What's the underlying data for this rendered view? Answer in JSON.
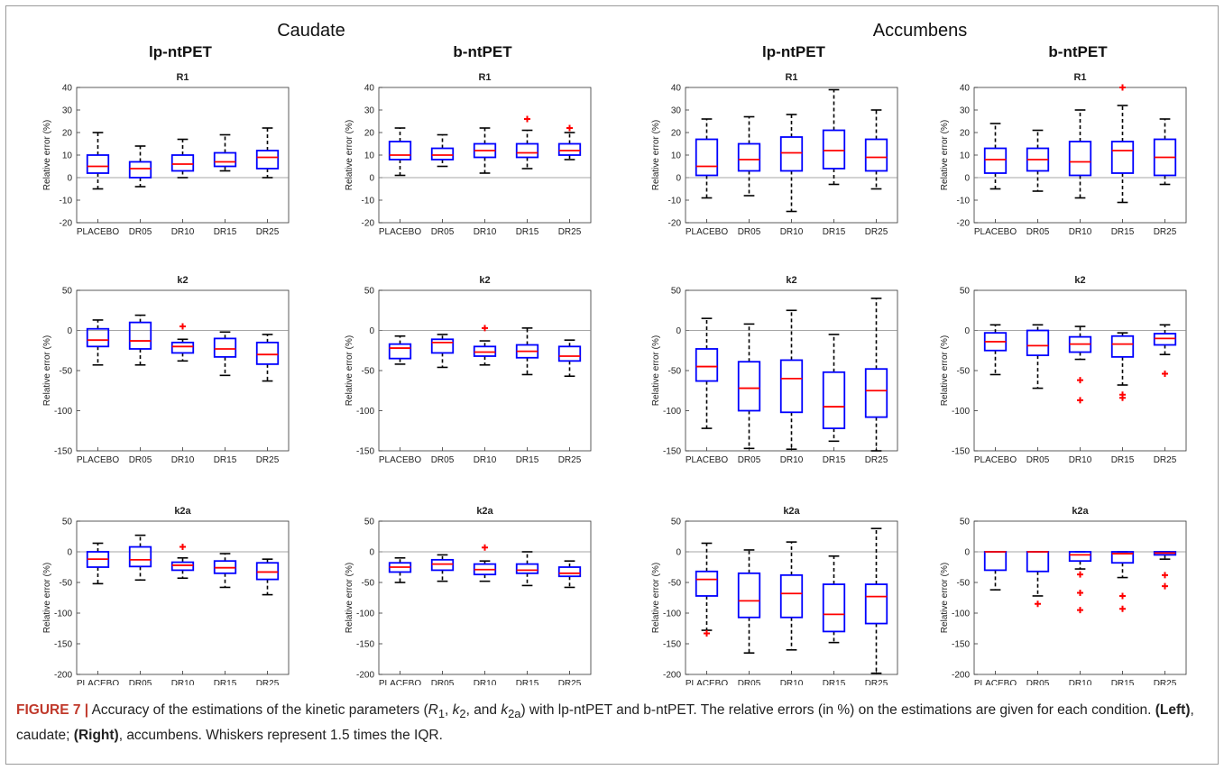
{
  "colors": {
    "box": "#0000ff",
    "median": "#ff0000",
    "outlier": "#ff0000",
    "whisker": "#000000",
    "zero_line": "#888888"
  },
  "regions": [
    {
      "title": "Caudate",
      "methods": [
        "lp-ntPET",
        "b-ntPET"
      ]
    },
    {
      "title": "Accumbens",
      "methods": [
        "lp-ntPET",
        "b-ntPET"
      ]
    }
  ],
  "caption": {
    "label": "FIGURE 7 |",
    "text_1": " Accuracy of the estimations of the kinetic parameters (",
    "p1": "R",
    "s1": "1",
    "sep1": ", ",
    "p2": "k",
    "s2": "2",
    "sep2": ", and ",
    "p3": "k",
    "s3": "2a",
    "text_2": ") with lp-ntPET and b-ntPET. The relative errors (in %) on the estimations are given for each condition. ",
    "left": "(Left)",
    "text_3": ", caudate; ",
    "right": "(Right)",
    "text_4": ", accumbens. Whiskers represent 1.5 times the IQR."
  },
  "chart_data": [
    {
      "type": "box",
      "region": "Caudate",
      "method": "lp-ntPET",
      "title": "R1",
      "ylabel": "Relative error (%)",
      "ylim": [
        -20,
        40
      ],
      "yticks": [
        -20,
        -10,
        0,
        10,
        20,
        30,
        40
      ],
      "categories": [
        "PLACEBO",
        "DR05",
        "DR10",
        "DR15",
        "DR25"
      ],
      "boxes": [
        {
          "q1": 2,
          "median": 5,
          "q3": 10,
          "lo": -5,
          "hi": 20,
          "outliers": []
        },
        {
          "q1": 0,
          "median": 4,
          "q3": 7,
          "lo": -4,
          "hi": 14,
          "outliers": []
        },
        {
          "q1": 3,
          "median": 6,
          "q3": 10,
          "lo": 0,
          "hi": 17,
          "outliers": []
        },
        {
          "q1": 5,
          "median": 7,
          "q3": 11,
          "lo": 3,
          "hi": 19,
          "outliers": []
        },
        {
          "q1": 4,
          "median": 9,
          "q3": 12,
          "lo": 0,
          "hi": 22,
          "outliers": []
        }
      ]
    },
    {
      "type": "box",
      "region": "Caudate",
      "method": "b-ntPET",
      "title": "R1",
      "ylabel": "Relative error (%)",
      "ylim": [
        -20,
        40
      ],
      "yticks": [
        -20,
        -10,
        0,
        10,
        20,
        30,
        40
      ],
      "categories": [
        "PLACEBO",
        "DR05",
        "DR10",
        "DR15",
        "DR25"
      ],
      "boxes": [
        {
          "q1": 8,
          "median": 10,
          "q3": 16,
          "lo": 1,
          "hi": 22,
          "outliers": []
        },
        {
          "q1": 8,
          "median": 10,
          "q3": 13,
          "lo": 5,
          "hi": 19,
          "outliers": []
        },
        {
          "q1": 9,
          "median": 12,
          "q3": 15,
          "lo": 2,
          "hi": 22,
          "outliers": []
        },
        {
          "q1": 9,
          "median": 11,
          "q3": 15,
          "lo": 4,
          "hi": 21,
          "outliers": [
            26
          ]
        },
        {
          "q1": 10,
          "median": 12,
          "q3": 15,
          "lo": 8,
          "hi": 20,
          "outliers": [
            22
          ]
        }
      ]
    },
    {
      "type": "box",
      "region": "Accumbens",
      "method": "lp-ntPET",
      "title": "R1",
      "ylabel": "Relative error (%)",
      "ylim": [
        -20,
        40
      ],
      "yticks": [
        -20,
        -10,
        0,
        10,
        20,
        30,
        40
      ],
      "categories": [
        "PLACEBO",
        "DR05",
        "DR10",
        "DR15",
        "DR25"
      ],
      "boxes": [
        {
          "q1": 1,
          "median": 5,
          "q3": 17,
          "lo": -9,
          "hi": 26,
          "outliers": []
        },
        {
          "q1": 3,
          "median": 8,
          "q3": 15,
          "lo": -8,
          "hi": 27,
          "outliers": []
        },
        {
          "q1": 3,
          "median": 11,
          "q3": 18,
          "lo": -15,
          "hi": 28,
          "outliers": []
        },
        {
          "q1": 4,
          "median": 12,
          "q3": 21,
          "lo": -3,
          "hi": 39,
          "outliers": []
        },
        {
          "q1": 3,
          "median": 9,
          "q3": 17,
          "lo": -5,
          "hi": 30,
          "outliers": []
        }
      ]
    },
    {
      "type": "box",
      "region": "Accumbens",
      "method": "b-ntPET",
      "title": "R1",
      "ylabel": "Relative error (%)",
      "ylim": [
        -20,
        40
      ],
      "yticks": [
        -20,
        -10,
        0,
        10,
        20,
        30,
        40
      ],
      "categories": [
        "PLACEBO",
        "DR05",
        "DR10",
        "DR15",
        "DR25"
      ],
      "boxes": [
        {
          "q1": 2,
          "median": 8,
          "q3": 13,
          "lo": -5,
          "hi": 24,
          "outliers": []
        },
        {
          "q1": 3,
          "median": 8,
          "q3": 13,
          "lo": -6,
          "hi": 21,
          "outliers": []
        },
        {
          "q1": 1,
          "median": 7,
          "q3": 16,
          "lo": -9,
          "hi": 30,
          "outliers": []
        },
        {
          "q1": 2,
          "median": 12,
          "q3": 16,
          "lo": -11,
          "hi": 32,
          "outliers": [
            40
          ]
        },
        {
          "q1": 1,
          "median": 9,
          "q3": 17,
          "lo": -3,
          "hi": 26,
          "outliers": []
        }
      ]
    },
    {
      "type": "box",
      "region": "Caudate",
      "method": "lp-ntPET",
      "title": "k2",
      "ylabel": "Relative error (%)",
      "ylim": [
        -150,
        50
      ],
      "yticks": [
        -150,
        -100,
        -50,
        0,
        50
      ],
      "categories": [
        "PLACEBO",
        "DR05",
        "DR10",
        "DR15",
        "DR25"
      ],
      "boxes": [
        {
          "q1": -20,
          "median": -12,
          "q3": 2,
          "lo": -43,
          "hi": 13,
          "outliers": []
        },
        {
          "q1": -23,
          "median": -13,
          "q3": 10,
          "lo": -43,
          "hi": 19,
          "outliers": []
        },
        {
          "q1": -28,
          "median": -20,
          "q3": -15,
          "lo": -38,
          "hi": -11,
          "outliers": [
            5
          ]
        },
        {
          "q1": -33,
          "median": -23,
          "q3": -10,
          "lo": -56,
          "hi": -2,
          "outliers": []
        },
        {
          "q1": -42,
          "median": -30,
          "q3": -15,
          "lo": -63,
          "hi": -5,
          "outliers": []
        }
      ]
    },
    {
      "type": "box",
      "region": "Caudate",
      "method": "b-ntPET",
      "title": "k2",
      "ylabel": "Relative error (%)",
      "ylim": [
        -150,
        50
      ],
      "yticks": [
        -150,
        -100,
        -50,
        0,
        50
      ],
      "categories": [
        "PLACEBO",
        "DR05",
        "DR10",
        "DR15",
        "DR25"
      ],
      "boxes": [
        {
          "q1": -35,
          "median": -22,
          "q3": -17,
          "lo": -42,
          "hi": -7,
          "outliers": []
        },
        {
          "q1": -28,
          "median": -15,
          "q3": -11,
          "lo": -46,
          "hi": -5,
          "outliers": []
        },
        {
          "q1": -32,
          "median": -27,
          "q3": -20,
          "lo": -43,
          "hi": -13,
          "outliers": [
            3
          ]
        },
        {
          "q1": -34,
          "median": -26,
          "q3": -18,
          "lo": -55,
          "hi": 3,
          "outliers": []
        },
        {
          "q1": -38,
          "median": -32,
          "q3": -20,
          "lo": -57,
          "hi": -12,
          "outliers": []
        }
      ]
    },
    {
      "type": "box",
      "region": "Accumbens",
      "method": "lp-ntPET",
      "title": "k2",
      "ylabel": "Relative error (%)",
      "ylim": [
        -150,
        50
      ],
      "yticks": [
        -150,
        -100,
        -50,
        0,
        50
      ],
      "categories": [
        "PLACEBO",
        "DR05",
        "DR10",
        "DR15",
        "DR25"
      ],
      "boxes": [
        {
          "q1": -63,
          "median": -45,
          "q3": -23,
          "lo": -122,
          "hi": 15,
          "outliers": []
        },
        {
          "q1": -100,
          "median": -72,
          "q3": -39,
          "lo": -147,
          "hi": 8,
          "outliers": []
        },
        {
          "q1": -102,
          "median": -60,
          "q3": -37,
          "lo": -148,
          "hi": 25,
          "outliers": []
        },
        {
          "q1": -122,
          "median": -95,
          "q3": -52,
          "lo": -138,
          "hi": -5,
          "outliers": []
        },
        {
          "q1": -108,
          "median": -75,
          "q3": -48,
          "lo": -150,
          "hi": 40,
          "outliers": []
        }
      ]
    },
    {
      "type": "box",
      "region": "Accumbens",
      "method": "b-ntPET",
      "title": "k2",
      "ylabel": "Relative error (%)",
      "ylim": [
        -150,
        50
      ],
      "yticks": [
        -150,
        -100,
        -50,
        0,
        50
      ],
      "categories": [
        "PLACEBO",
        "DR05",
        "DR10",
        "DR15",
        "DR25"
      ],
      "boxes": [
        {
          "q1": -25,
          "median": -14,
          "q3": -3,
          "lo": -55,
          "hi": 7,
          "outliers": []
        },
        {
          "q1": -31,
          "median": -19,
          "q3": 0,
          "lo": -72,
          "hi": 7,
          "outliers": []
        },
        {
          "q1": -27,
          "median": -17,
          "q3": -8,
          "lo": -36,
          "hi": 5,
          "outliers": [
            -62,
            -87
          ]
        },
        {
          "q1": -33,
          "median": -17,
          "q3": -7,
          "lo": -68,
          "hi": -3,
          "outliers": [
            -80,
            -84
          ]
        },
        {
          "q1": -18,
          "median": -10,
          "q3": -4,
          "lo": -30,
          "hi": 7,
          "outliers": [
            -54
          ]
        }
      ]
    },
    {
      "type": "box",
      "region": "Caudate",
      "method": "lp-ntPET",
      "title": "k2a",
      "ylabel": "Relative error (%)",
      "ylim": [
        -200,
        50
      ],
      "yticks": [
        -200,
        -150,
        -100,
        -50,
        0,
        50
      ],
      "categories": [
        "PLACEBO",
        "DR05",
        "DR10",
        "DR15",
        "DR25"
      ],
      "boxes": [
        {
          "q1": -25,
          "median": -12,
          "q3": 0,
          "lo": -52,
          "hi": 14,
          "outliers": []
        },
        {
          "q1": -24,
          "median": -13,
          "q3": 8,
          "lo": -46,
          "hi": 27,
          "outliers": []
        },
        {
          "q1": -30,
          "median": -22,
          "q3": -17,
          "lo": -43,
          "hi": -10,
          "outliers": [
            8
          ]
        },
        {
          "q1": -35,
          "median": -26,
          "q3": -15,
          "lo": -58,
          "hi": -3,
          "outliers": []
        },
        {
          "q1": -45,
          "median": -33,
          "q3": -18,
          "lo": -70,
          "hi": -12,
          "outliers": []
        }
      ]
    },
    {
      "type": "box",
      "region": "Caudate",
      "method": "b-ntPET",
      "title": "k2a",
      "ylabel": "Relative error (%)",
      "ylim": [
        -200,
        50
      ],
      "yticks": [
        -200,
        -150,
        -100,
        -50,
        0,
        50
      ],
      "categories": [
        "PLACEBO",
        "DR05",
        "DR10",
        "DR15",
        "DR25"
      ],
      "boxes": [
        {
          "q1": -33,
          "median": -25,
          "q3": -18,
          "lo": -50,
          "hi": -10,
          "outliers": []
        },
        {
          "q1": -30,
          "median": -20,
          "q3": -13,
          "lo": -48,
          "hi": -5,
          "outliers": []
        },
        {
          "q1": -37,
          "median": -29,
          "q3": -20,
          "lo": -48,
          "hi": -15,
          "outliers": [
            7
          ]
        },
        {
          "q1": -35,
          "median": -30,
          "q3": -20,
          "lo": -55,
          "hi": 0,
          "outliers": []
        },
        {
          "q1": -40,
          "median": -35,
          "q3": -25,
          "lo": -58,
          "hi": -15,
          "outliers": []
        }
      ]
    },
    {
      "type": "box",
      "region": "Accumbens",
      "method": "lp-ntPET",
      "title": "k2a",
      "ylabel": "Relative error (%)",
      "ylim": [
        -200,
        50
      ],
      "yticks": [
        -200,
        -150,
        -100,
        -50,
        0,
        50
      ],
      "categories": [
        "PLACEBO",
        "DR05",
        "DR10",
        "DR15",
        "DR25"
      ],
      "boxes": [
        {
          "q1": -72,
          "median": -45,
          "q3": -32,
          "lo": -128,
          "hi": 14,
          "outliers": [
            -133
          ]
        },
        {
          "q1": -107,
          "median": -80,
          "q3": -35,
          "lo": -165,
          "hi": 3,
          "outliers": []
        },
        {
          "q1": -107,
          "median": -68,
          "q3": -38,
          "lo": -160,
          "hi": 16,
          "outliers": []
        },
        {
          "q1": -130,
          "median": -102,
          "q3": -53,
          "lo": -148,
          "hi": -7,
          "outliers": []
        },
        {
          "q1": -117,
          "median": -73,
          "q3": -53,
          "lo": -198,
          "hi": 38,
          "outliers": []
        }
      ]
    },
    {
      "type": "box",
      "region": "Accumbens",
      "method": "b-ntPET",
      "title": "k2a",
      "ylabel": "Relative error (%)",
      "ylim": [
        -200,
        50
      ],
      "yticks": [
        -200,
        -150,
        -100,
        -50,
        0,
        50
      ],
      "categories": [
        "PLACEBO",
        "DR05",
        "DR10",
        "DR15",
        "DR25"
      ],
      "boxes": [
        {
          "q1": -30,
          "median": 0,
          "q3": 0,
          "lo": -62,
          "hi": 0,
          "outliers": []
        },
        {
          "q1": -32,
          "median": 0,
          "q3": 0,
          "lo": -72,
          "hi": 0,
          "outliers": [
            -85
          ]
        },
        {
          "q1": -15,
          "median": -5,
          "q3": 0,
          "lo": -28,
          "hi": 0,
          "outliers": [
            -37,
            -67,
            -95
          ]
        },
        {
          "q1": -18,
          "median": -3,
          "q3": 0,
          "lo": -42,
          "hi": 0,
          "outliers": [
            -72,
            -93
          ]
        },
        {
          "q1": -5,
          "median": -2,
          "q3": 0,
          "lo": -12,
          "hi": 0,
          "outliers": [
            -38,
            -56
          ]
        }
      ]
    }
  ]
}
